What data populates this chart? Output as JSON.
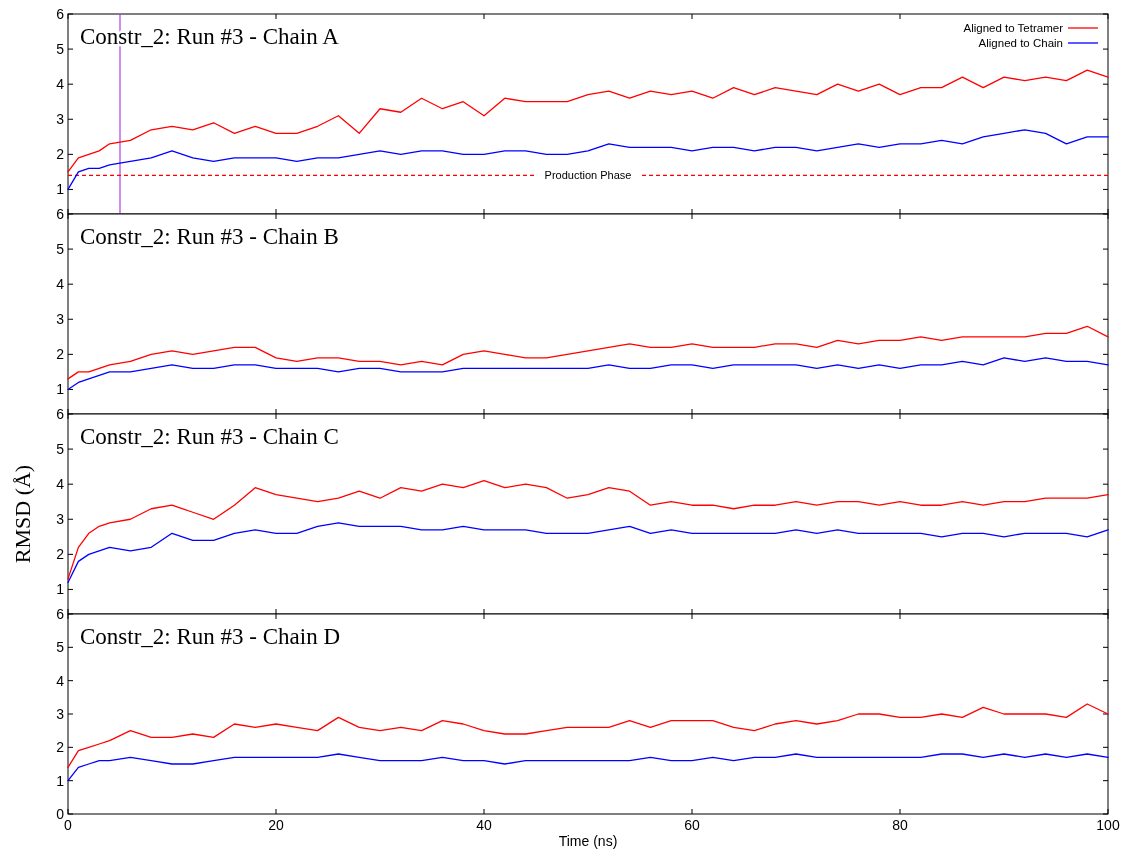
{
  "chart_data": [
    {
      "type": "line",
      "title": "Constr_2: Run #3 - Chain A",
      "x": [
        0,
        1,
        2,
        3,
        4,
        6,
        8,
        10,
        12,
        14,
        16,
        18,
        20,
        22,
        24,
        26,
        28,
        30,
        32,
        34,
        36,
        38,
        40,
        42,
        44,
        46,
        48,
        50,
        52,
        54,
        56,
        58,
        60,
        62,
        64,
        66,
        68,
        70,
        72,
        74,
        76,
        78,
        80,
        82,
        84,
        86,
        88,
        90,
        92,
        94,
        96,
        98,
        100
      ],
      "xlim": [
        0,
        100
      ],
      "xticks": [
        0,
        20,
        40,
        60,
        80,
        100
      ],
      "ylim": [
        0.3,
        6
      ],
      "yticks": [
        1,
        2,
        3,
        4,
        5,
        6
      ],
      "tick_labels": "y",
      "legend": "top right",
      "series": [
        {
          "name": "Aligned to Tetramer",
          "color": "#ff0000",
          "values": [
            1.5,
            1.9,
            2.0,
            2.1,
            2.3,
            2.4,
            2.7,
            2.8,
            2.7,
            2.9,
            2.6,
            2.8,
            2.6,
            2.6,
            2.8,
            3.1,
            2.6,
            3.3,
            3.2,
            3.6,
            3.3,
            3.5,
            3.1,
            3.6,
            3.5,
            3.5,
            3.5,
            3.7,
            3.8,
            3.6,
            3.8,
            3.7,
            3.8,
            3.6,
            3.9,
            3.7,
            3.9,
            3.8,
            3.7,
            4.0,
            3.8,
            4.0,
            3.7,
            3.9,
            3.9,
            4.2,
            3.9,
            4.2,
            4.1,
            4.2,
            4.1,
            4.4,
            4.2
          ]
        },
        {
          "name": "Aligned to Chain",
          "color": "#0000ff",
          "values": [
            1.0,
            1.5,
            1.6,
            1.6,
            1.7,
            1.8,
            1.9,
            2.1,
            1.9,
            1.8,
            1.9,
            1.9,
            1.9,
            1.8,
            1.9,
            1.9,
            2.0,
            2.1,
            2.0,
            2.1,
            2.1,
            2.0,
            2.0,
            2.1,
            2.1,
            2.0,
            2.0,
            2.1,
            2.3,
            2.2,
            2.2,
            2.2,
            2.1,
            2.2,
            2.2,
            2.1,
            2.2,
            2.2,
            2.1,
            2.2,
            2.3,
            2.2,
            2.3,
            2.3,
            2.4,
            2.3,
            2.5,
            2.6,
            2.7,
            2.6,
            2.3,
            2.5,
            2.5
          ]
        }
      ],
      "ref_lines": [
        {
          "axis": "x",
          "value": 5,
          "color": "#b040e0"
        },
        {
          "axis": "y",
          "value": 1.4,
          "label": "Production Phase",
          "color": "#ff0000",
          "line_style": "dashed"
        }
      ]
    },
    {
      "type": "line",
      "title": "Constr_2: Run #3 - Chain B",
      "x": [
        0,
        1,
        2,
        3,
        4,
        6,
        8,
        10,
        12,
        14,
        16,
        18,
        20,
        22,
        24,
        26,
        28,
        30,
        32,
        34,
        36,
        38,
        40,
        42,
        44,
        46,
        48,
        50,
        52,
        54,
        56,
        58,
        60,
        62,
        64,
        66,
        68,
        70,
        72,
        74,
        76,
        78,
        80,
        82,
        84,
        86,
        88,
        90,
        92,
        94,
        96,
        98,
        100
      ],
      "xlim": [
        0,
        100
      ],
      "xticks": [
        0,
        20,
        40,
        60,
        80,
        100
      ],
      "ylim": [
        0.3,
        6
      ],
      "yticks": [
        1,
        2,
        3,
        4,
        5,
        6
      ],
      "tick_labels": "y",
      "series": [
        {
          "color": "#ff0000",
          "values": [
            1.3,
            1.5,
            1.5,
            1.6,
            1.7,
            1.8,
            2.0,
            2.1,
            2.0,
            2.1,
            2.2,
            2.2,
            1.9,
            1.8,
            1.9,
            1.9,
            1.8,
            1.8,
            1.7,
            1.8,
            1.7,
            2.0,
            2.1,
            2.0,
            1.9,
            1.9,
            2.0,
            2.1,
            2.2,
            2.3,
            2.2,
            2.2,
            2.3,
            2.2,
            2.2,
            2.2,
            2.3,
            2.3,
            2.2,
            2.4,
            2.3,
            2.4,
            2.4,
            2.5,
            2.4,
            2.5,
            2.5,
            2.5,
            2.5,
            2.6,
            2.6,
            2.8,
            2.5
          ]
        },
        {
          "color": "#0000ff",
          "values": [
            1.0,
            1.2,
            1.3,
            1.4,
            1.5,
            1.5,
            1.6,
            1.7,
            1.6,
            1.6,
            1.7,
            1.7,
            1.6,
            1.6,
            1.6,
            1.5,
            1.6,
            1.6,
            1.5,
            1.5,
            1.5,
            1.6,
            1.6,
            1.6,
            1.6,
            1.6,
            1.6,
            1.6,
            1.7,
            1.6,
            1.6,
            1.7,
            1.7,
            1.6,
            1.7,
            1.7,
            1.7,
            1.7,
            1.6,
            1.7,
            1.6,
            1.7,
            1.6,
            1.7,
            1.7,
            1.8,
            1.7,
            1.9,
            1.8,
            1.9,
            1.8,
            1.8,
            1.7
          ]
        }
      ]
    },
    {
      "type": "line",
      "title": "Constr_2: Run #3 - Chain C",
      "ylabel": "RMSD (Å)",
      "x": [
        0,
        1,
        2,
        3,
        4,
        6,
        8,
        10,
        12,
        14,
        16,
        18,
        20,
        22,
        24,
        26,
        28,
        30,
        32,
        34,
        36,
        38,
        40,
        42,
        44,
        46,
        48,
        50,
        52,
        54,
        56,
        58,
        60,
        62,
        64,
        66,
        68,
        70,
        72,
        74,
        76,
        78,
        80,
        82,
        84,
        86,
        88,
        90,
        92,
        94,
        96,
        98,
        100
      ],
      "xlim": [
        0,
        100
      ],
      "xticks": [
        0,
        20,
        40,
        60,
        80,
        100
      ],
      "ylim": [
        0.3,
        6
      ],
      "yticks": [
        1,
        2,
        3,
        4,
        5,
        6
      ],
      "tick_labels": "y",
      "series": [
        {
          "color": "#ff0000",
          "values": [
            1.3,
            2.2,
            2.6,
            2.8,
            2.9,
            3.0,
            3.3,
            3.4,
            3.2,
            3.0,
            3.4,
            3.9,
            3.7,
            3.6,
            3.5,
            3.6,
            3.8,
            3.6,
            3.9,
            3.8,
            4.0,
            3.9,
            4.1,
            3.9,
            4.0,
            3.9,
            3.6,
            3.7,
            3.9,
            3.8,
            3.4,
            3.5,
            3.4,
            3.4,
            3.3,
            3.4,
            3.4,
            3.5,
            3.4,
            3.5,
            3.5,
            3.4,
            3.5,
            3.4,
            3.4,
            3.5,
            3.4,
            3.5,
            3.5,
            3.6,
            3.6,
            3.6,
            3.7
          ]
        },
        {
          "color": "#0000ff",
          "values": [
            1.2,
            1.8,
            2.0,
            2.1,
            2.2,
            2.1,
            2.2,
            2.6,
            2.4,
            2.4,
            2.6,
            2.7,
            2.6,
            2.6,
            2.8,
            2.9,
            2.8,
            2.8,
            2.8,
            2.7,
            2.7,
            2.8,
            2.7,
            2.7,
            2.7,
            2.6,
            2.6,
            2.6,
            2.7,
            2.8,
            2.6,
            2.7,
            2.6,
            2.6,
            2.6,
            2.6,
            2.6,
            2.7,
            2.6,
            2.7,
            2.6,
            2.6,
            2.6,
            2.6,
            2.5,
            2.6,
            2.6,
            2.5,
            2.6,
            2.6,
            2.6,
            2.5,
            2.7
          ]
        }
      ]
    },
    {
      "type": "line",
      "title": "Constr_2: Run #3 - Chain D",
      "xlabel": "Time (ns)",
      "x": [
        0,
        1,
        2,
        3,
        4,
        6,
        8,
        10,
        12,
        14,
        16,
        18,
        20,
        22,
        24,
        26,
        28,
        30,
        32,
        34,
        36,
        38,
        40,
        42,
        44,
        46,
        48,
        50,
        52,
        54,
        56,
        58,
        60,
        62,
        64,
        66,
        68,
        70,
        72,
        74,
        76,
        78,
        80,
        82,
        84,
        86,
        88,
        90,
        92,
        94,
        96,
        98,
        100
      ],
      "xlim": [
        0,
        100
      ],
      "xticks": [
        0,
        20,
        40,
        60,
        80,
        100
      ],
      "ylim": [
        0,
        6
      ],
      "yticks": [
        0,
        1,
        2,
        3,
        4,
        5,
        6
      ],
      "series": [
        {
          "color": "#ff0000",
          "values": [
            1.4,
            1.9,
            2.0,
            2.1,
            2.2,
            2.5,
            2.3,
            2.3,
            2.4,
            2.3,
            2.7,
            2.6,
            2.7,
            2.6,
            2.5,
            2.9,
            2.6,
            2.5,
            2.6,
            2.5,
            2.8,
            2.7,
            2.5,
            2.4,
            2.4,
            2.5,
            2.6,
            2.6,
            2.6,
            2.8,
            2.6,
            2.8,
            2.8,
            2.8,
            2.6,
            2.5,
            2.7,
            2.8,
            2.7,
            2.8,
            3.0,
            3.0,
            2.9,
            2.9,
            3.0,
            2.9,
            3.2,
            3.0,
            3.0,
            3.0,
            2.9,
            3.3,
            3.0
          ]
        },
        {
          "color": "#0000ff",
          "values": [
            1.0,
            1.4,
            1.5,
            1.6,
            1.6,
            1.7,
            1.6,
            1.5,
            1.5,
            1.6,
            1.7,
            1.7,
            1.7,
            1.7,
            1.7,
            1.8,
            1.7,
            1.6,
            1.6,
            1.6,
            1.7,
            1.6,
            1.6,
            1.5,
            1.6,
            1.6,
            1.6,
            1.6,
            1.6,
            1.6,
            1.7,
            1.6,
            1.6,
            1.7,
            1.6,
            1.7,
            1.7,
            1.8,
            1.7,
            1.7,
            1.7,
            1.7,
            1.7,
            1.7,
            1.8,
            1.8,
            1.7,
            1.8,
            1.7,
            1.8,
            1.7,
            1.8,
            1.7
          ]
        }
      ]
    }
  ]
}
